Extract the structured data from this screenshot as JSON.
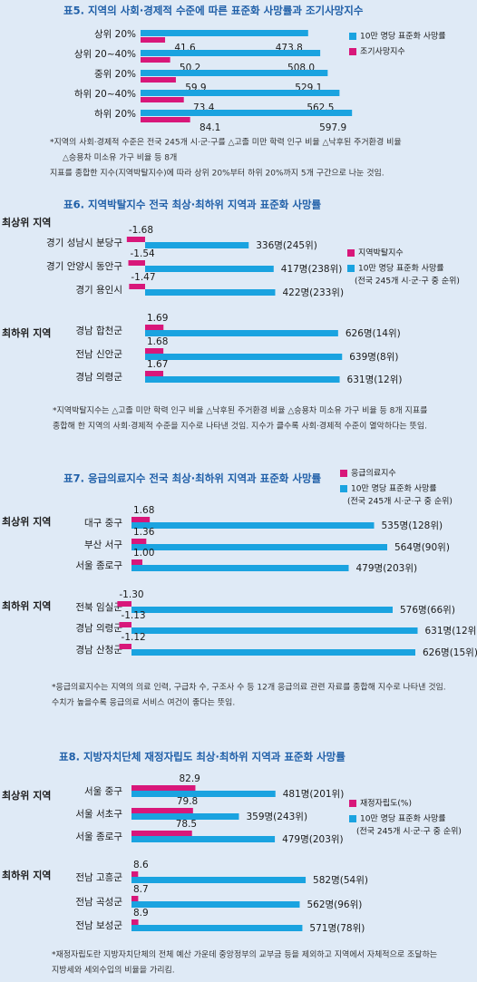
{
  "chart_data": [
    {
      "type": "bar",
      "orientation": "horizontal",
      "title": "표5. 지역의 사회·경제적 수준에 따른 표준화 사망률과 조기사망지수",
      "categories": [
        "상위 20%",
        "상위 20~40%",
        "중위 20%",
        "하위 20~40%",
        "하위 20%"
      ],
      "series": [
        {
          "name": "10만 명당 표준화 사망률",
          "color": "#1aa3e0",
          "values": [
            473.8,
            508.0,
            529.1,
            562.5,
            597.9
          ],
          "value_labels": [
            "473.8",
            "508.0",
            "529.1",
            "562.5",
            "597.9"
          ]
        },
        {
          "name": "조기사망지수",
          "color": "#d8177a",
          "values": [
            41.6,
            50.2,
            59.9,
            73.4,
            84.1
          ],
          "value_labels": [
            "41.6",
            "50.2",
            "59.9",
            "73.4",
            "84.1"
          ]
        }
      ],
      "notes": [
        "*지역의 사회·경제적 수준은 전국 245개 시·군·구를 △고졸 미만 학력 인구 비율 △낙후된 주거환경 비율",
        "△승용차 미소유 가구 비율 등 8개",
        "지표를 종합한 지수(지역박탈지수)에 따라 상위 20%부터 하위 20%까지 5개 구간으로 나눈 것임."
      ]
    },
    {
      "type": "bar",
      "orientation": "horizontal",
      "title": "표6. 지역박탈지수 전국 최상·최하위 지역과 표준화 사망률",
      "groups": [
        {
          "label": "최상위 지역",
          "categories": [
            "경기 성남시 분당구",
            "경기 안양시 동안구",
            "경기 용인시"
          ]
        },
        {
          "label": "최하위 지역",
          "categories": [
            "경남 합천군",
            "전남 신안군",
            "경남 의령군"
          ]
        }
      ],
      "series": [
        {
          "name": "지역박탈지수",
          "color": "#d8177a",
          "values": [
            [
              -1.68,
              -1.54,
              -1.47
            ],
            [
              1.69,
              1.68,
              1.67
            ]
          ],
          "value_labels": [
            [
              "-1.68",
              "-1.54",
              "-1.47"
            ],
            [
              "1.69",
              "1.68",
              "1.67"
            ]
          ]
        },
        {
          "name": "10만 명당 표준화 사망률",
          "color": "#1aa3e0",
          "values": [
            [
              336,
              417,
              422
            ],
            [
              626,
              639,
              631
            ]
          ],
          "value_labels": [
            [
              "336명(245위)",
              "417명(238위)",
              "422명(233위)"
            ],
            [
              "626명(14위)",
              "639명(8위)",
              "631명(12위)"
            ]
          ]
        }
      ],
      "legend_note": "(전국 245개 시·군·구 중 순위)",
      "notes": [
        "*지역박탈지수는 △고졸 미만 학력 인구 비율 △낙후된 주거환경 비율 △승용차 미소유 가구 비율 등 8개 지표를",
        "종합해 한 지역의 사회·경제적 수준을 지수로 나타낸 것임. 지수가 클수록 사회·경제적 수준이 열악하다는 뜻임."
      ]
    },
    {
      "type": "bar",
      "orientation": "horizontal",
      "title": "표7. 응급의료지수 전국 최상·최하위 지역과 표준화 사망률",
      "groups": [
        {
          "label": "최상위 지역",
          "categories": [
            "대구 중구",
            "부산 서구",
            "서울 종로구"
          ]
        },
        {
          "label": "최하위 지역",
          "categories": [
            "전북 임실군",
            "경남 의령군",
            "경남 산청군"
          ]
        }
      ],
      "series": [
        {
          "name": "응급의료지수",
          "color": "#d8177a",
          "values": [
            [
              1.68,
              1.36,
              1.0
            ],
            [
              -1.3,
              -1.13,
              -1.12
            ]
          ],
          "value_labels": [
            [
              "1.68",
              "1.36",
              "1.00"
            ],
            [
              "-1.30",
              "-1.13",
              "-1.12"
            ]
          ]
        },
        {
          "name": "10만 명당 표준화 사망률",
          "color": "#1aa3e0",
          "values": [
            [
              535,
              564,
              479
            ],
            [
              576,
              631,
              626
            ]
          ],
          "value_labels": [
            [
              "535명(128위)",
              "564명(90위)",
              "479명(203위)"
            ],
            [
              "576명(66위)",
              "631명(12위)",
              "626명(15위)"
            ]
          ]
        }
      ],
      "legend_note": "(전국 245개 시·군·구 중 순위)",
      "notes": [
        "*응급의료지수는 지역의 의료 인력, 구급차 수, 구조사 수 등 12개 응급의료 관련 자료를 종합해 지수로 나타낸 것임.",
        "수치가 높을수록 응급의료 서비스 여건이 좋다는 뜻임."
      ]
    },
    {
      "type": "bar",
      "orientation": "horizontal",
      "title": "표8. 지방자치단체 재정자립도 최상·최하위 지역과 표준화 사망률",
      "groups": [
        {
          "label": "최상위 지역",
          "categories": [
            "서울 중구",
            "서울 서초구",
            "서울 종로구"
          ]
        },
        {
          "label": "최하위 지역",
          "categories": [
            "전남 고흥군",
            "전남 곡성군",
            "전남 보성군"
          ]
        }
      ],
      "series": [
        {
          "name": "재정자립도(%)",
          "color": "#d8177a",
          "values": [
            [
              82.9,
              79.8,
              78.5
            ],
            [
              8.6,
              8.7,
              8.9
            ]
          ],
          "value_labels": [
            [
              "82.9",
              "79.8",
              "78.5"
            ],
            [
              "8.6",
              "8.7",
              "8.9"
            ]
          ]
        },
        {
          "name": "10만 명당 표준화 사망률",
          "color": "#1aa3e0",
          "values": [
            [
              481,
              359,
              479
            ],
            [
              582,
              562,
              571
            ]
          ],
          "value_labels": [
            [
              "481명(201위)",
              "359명(243위)",
              "479명(203위)"
            ],
            [
              "582명(54위)",
              "562명(96위)",
              "571명(78위)"
            ]
          ]
        }
      ],
      "legend_note": "(전국 245개 시·군·구 중 순위)",
      "notes": [
        "*재정자립도란 지방자치단체의 전체 예산 가운데 중앙정부의 교부금 등을 제외하고 지역에서 자체적으로 조달하는",
        "지방세와 세외수입의 비율을 가리킴."
      ]
    }
  ]
}
